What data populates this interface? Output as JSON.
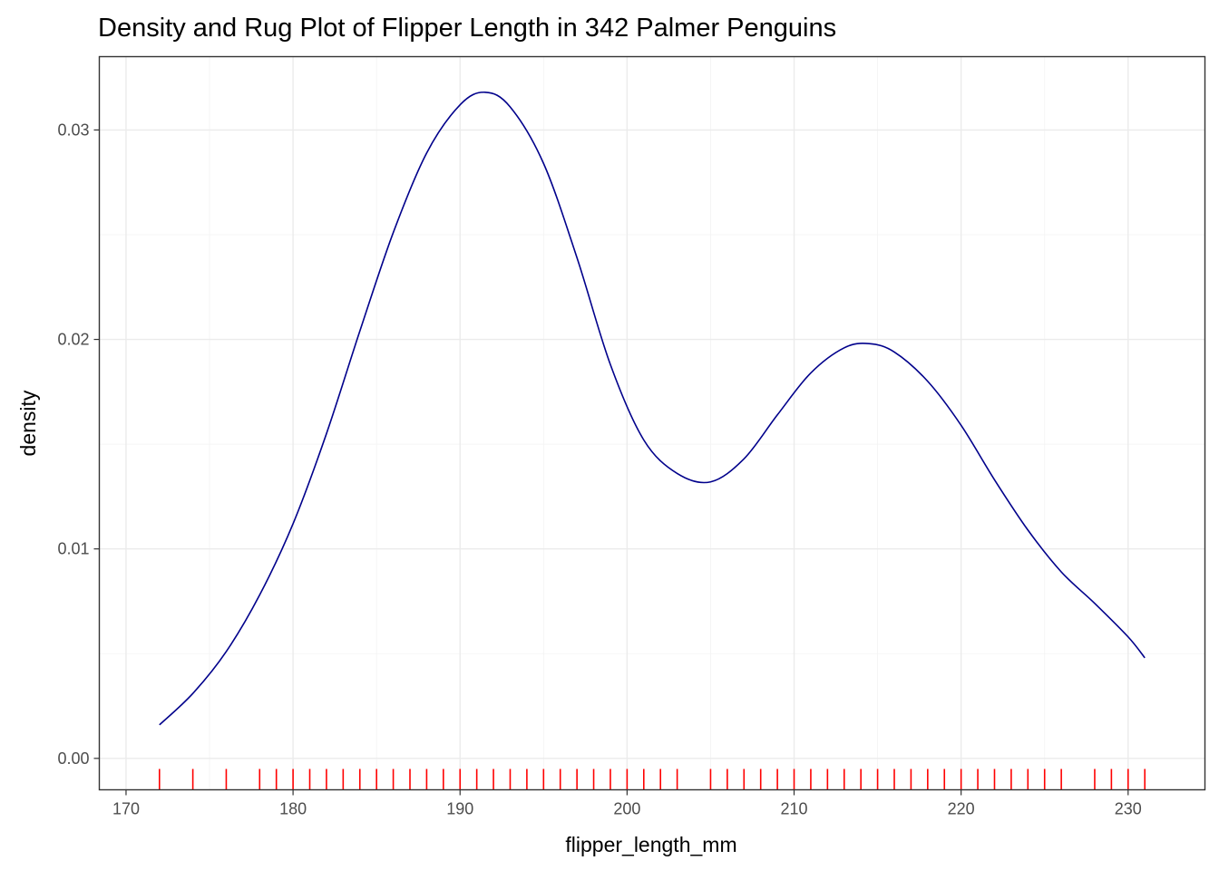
{
  "chart_data": {
    "type": "line",
    "title": "Density and Rug Plot of Flipper Length in 342 Palmer Penguins",
    "xlabel": "flipper_length_mm",
    "ylabel": "density",
    "xlim": [
      168.4,
      234.6
    ],
    "ylim": [
      -0.0015,
      0.0335
    ],
    "x_ticks": [
      170,
      180,
      190,
      200,
      210,
      220,
      230
    ],
    "y_ticks": [
      0.0,
      0.01,
      0.02,
      0.03
    ],
    "x_tick_labels": [
      "170",
      "180",
      "190",
      "200",
      "210",
      "220",
      "230"
    ],
    "y_tick_labels": [
      "0.00",
      "0.01",
      "0.02",
      "0.03"
    ],
    "grid": true,
    "density_color": "#00008B",
    "rug_color": "#FF0000",
    "series": [
      {
        "x": [
          172,
          174,
          176,
          178,
          180,
          182,
          184,
          186,
          188,
          190,
          191.5,
          193,
          195,
          197,
          199,
          201,
          203,
          205,
          207,
          209,
          211,
          213,
          214.5,
          216,
          218,
          220,
          222,
          224,
          226,
          228,
          230,
          231
        ],
        "values": [
          0.0016,
          0.0031,
          0.0051,
          0.0078,
          0.0112,
          0.0155,
          0.0204,
          0.0251,
          0.0289,
          0.0312,
          0.0318,
          0.0311,
          0.0284,
          0.0239,
          0.0188,
          0.0152,
          0.0136,
          0.0132,
          0.0143,
          0.0164,
          0.0184,
          0.0196,
          0.0198,
          0.0194,
          0.018,
          0.0159,
          0.0133,
          0.0109,
          0.0089,
          0.0074,
          0.0058,
          0.0048
        ]
      }
    ],
    "rug": [
      172,
      174,
      176,
      178,
      179,
      180,
      181,
      182,
      183,
      184,
      185,
      186,
      187,
      188,
      189,
      190,
      191,
      192,
      193,
      194,
      195,
      196,
      197,
      198,
      199,
      200,
      201,
      202,
      203,
      205,
      206,
      207,
      208,
      209,
      210,
      211,
      212,
      213,
      214,
      215,
      216,
      217,
      218,
      219,
      220,
      221,
      222,
      223,
      224,
      225,
      226,
      228,
      229,
      230,
      231
    ]
  }
}
